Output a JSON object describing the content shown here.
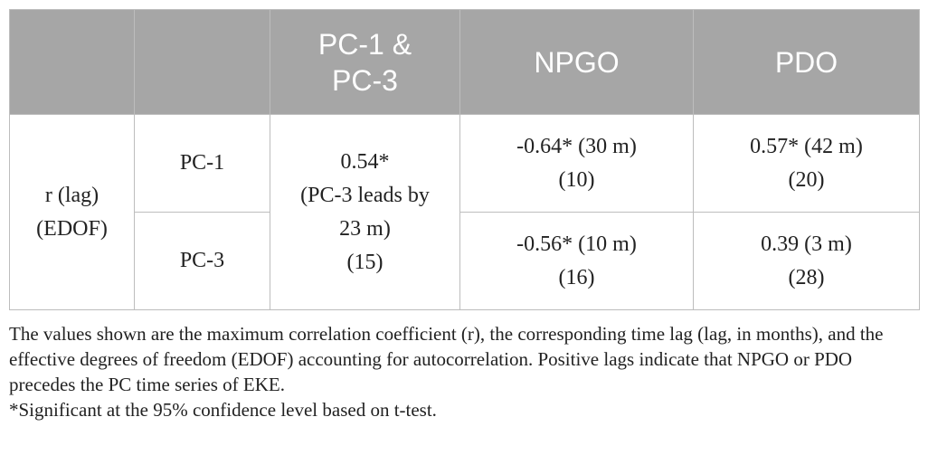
{
  "table": {
    "header": {
      "blank1": "",
      "blank2": "",
      "col_pc1_pc3": [
        "PC-1 &",
        "PC-3"
      ],
      "col_npgo": "NPGO",
      "col_pdo": "PDO"
    },
    "row_group_label": [
      "r (lag)",
      "(EDOF)"
    ],
    "rows": [
      {
        "pc": "PC-1",
        "npgo": [
          "-0.64* (30 m)",
          "(10)"
        ],
        "pdo": [
          "0.57* (42 m)",
          "(20)"
        ]
      },
      {
        "pc": "PC-3",
        "npgo": [
          "-0.56* (10 m)",
          "(16)"
        ],
        "pdo": [
          "0.39 (3 m)",
          "(28)"
        ]
      }
    ],
    "pc1_pc3_value": [
      "0.54*",
      "(PC-3 leads by",
      "23 m)",
      "(15)"
    ]
  },
  "notes": {
    "main": "The values shown are the maximum correlation coefficient (r), the corresponding time lag (lag, in months), and the effective degrees of freedom (EDOF) accounting for autocorrelation. Positive lags indicate that NPGO or PDO precedes the PC time series of EKE.",
    "significance": "*Significant at the 95% confidence level based on t-test."
  }
}
